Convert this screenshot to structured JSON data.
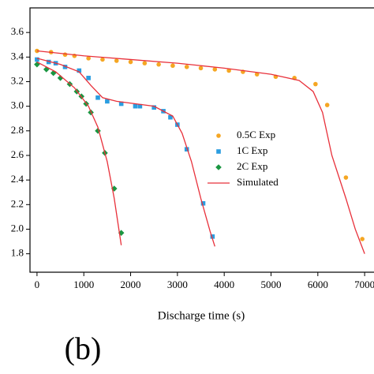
{
  "chart_data": {
    "type": "scatter",
    "xlabel": "Discharge time (s)",
    "annotation": "(b)",
    "xlim": [
      -150,
      7200
    ],
    "ylim": [
      1.65,
      3.8
    ],
    "xticks": [
      0,
      1000,
      2000,
      3000,
      4000,
      5000,
      6000,
      7000
    ],
    "yticks": [
      1.8,
      {
        "value": 2,
        "label": "2.0"
      },
      2.2,
      2.4,
      2.6,
      2.8,
      {
        "value": 3,
        "label": "3.0"
      },
      3.2,
      3.4,
      3.6
    ],
    "series": [
      {
        "name": "0.5C Exp",
        "color": "#f5a623",
        "marker": "circle",
        "x": [
          0,
          300,
          600,
          800,
          1100,
          1400,
          1700,
          2000,
          2300,
          2600,
          2900,
          3200,
          3500,
          3800,
          4100,
          4400,
          4700,
          5100,
          5500,
          5950,
          6200,
          6600,
          6950
        ],
        "values": [
          3.45,
          3.44,
          3.42,
          3.41,
          3.39,
          3.38,
          3.37,
          3.36,
          3.35,
          3.34,
          3.33,
          3.32,
          3.31,
          3.3,
          3.29,
          3.28,
          3.26,
          3.24,
          3.23,
          3.18,
          3.01,
          2.42,
          1.92
        ]
      },
      {
        "name": "1C Exp",
        "color": "#2b9de0",
        "marker": "square",
        "x": [
          0,
          250,
          400,
          600,
          900,
          1100,
          1300,
          1500,
          1800,
          2100,
          2200,
          2500,
          2700,
          2850,
          3000,
          3200,
          3550,
          3750
        ],
        "values": [
          3.38,
          3.36,
          3.35,
          3.32,
          3.29,
          3.23,
          3.07,
          3.04,
          3.02,
          3.0,
          3.0,
          2.99,
          2.96,
          2.91,
          2.85,
          2.65,
          2.21,
          1.94
        ]
      },
      {
        "name": "2C Exp",
        "color": "#1a9641",
        "marker": "diamond",
        "x": [
          0,
          200,
          350,
          500,
          700,
          850,
          950,
          1050,
          1150,
          1300,
          1450,
          1650,
          1800
        ],
        "values": [
          3.34,
          3.3,
          3.27,
          3.23,
          3.18,
          3.12,
          3.08,
          3.02,
          2.95,
          2.8,
          2.62,
          2.33,
          1.97
        ]
      },
      {
        "name": "Simulated",
        "color": "#e8303a",
        "marker": "line",
        "x": [
          0,
          1000,
          2000,
          3000,
          4000,
          5000,
          5600,
          5900,
          6100,
          6300,
          6600,
          6800,
          7000,
          null,
          0,
          500,
          900,
          1150,
          1400,
          1700,
          2500,
          2900,
          3100,
          3300,
          3500,
          3700,
          3800,
          null,
          0,
          400,
          800,
          1100,
          1300,
          1500,
          1650,
          1800
        ],
        "values": [
          3.45,
          3.41,
          3.38,
          3.35,
          3.31,
          3.26,
          3.21,
          3.12,
          2.95,
          2.6,
          2.25,
          2.0,
          1.8,
          null,
          3.39,
          3.34,
          3.28,
          3.17,
          3.07,
          3.04,
          3.0,
          2.92,
          2.78,
          2.55,
          2.25,
          1.98,
          1.86,
          null,
          3.36,
          3.28,
          3.15,
          3.0,
          2.83,
          2.55,
          2.25,
          1.87
        ]
      }
    ]
  }
}
